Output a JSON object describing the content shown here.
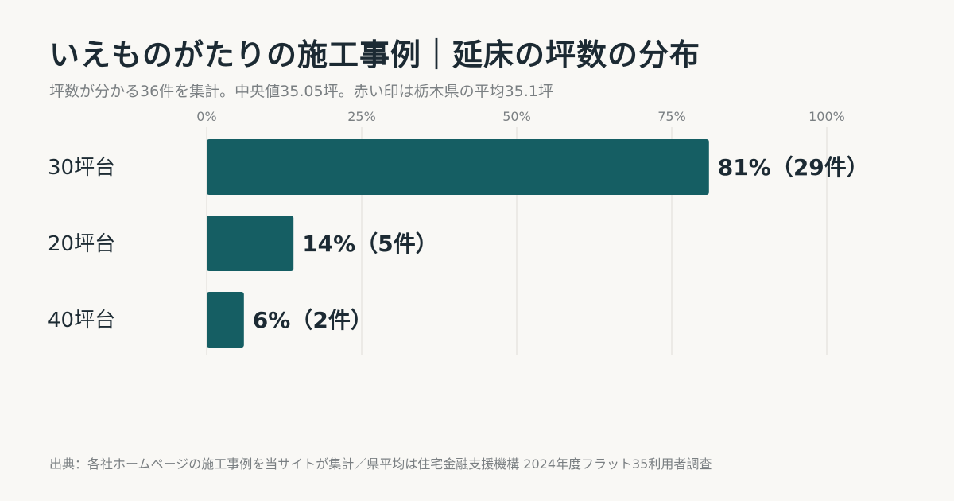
{
  "header": {
    "title": "いえものがたりの施工事例｜延床の坪数の分布",
    "subtitle": "坪数が分かる36件を集計。中央値35.05坪。赤い印は栃木県の平均35.1坪"
  },
  "footer": {
    "source": "出典：各社ホームページの施工事例を当サイトが集計／県平均は住宅金融支援機構 2024年度フラット35利用者調査"
  },
  "colors": {
    "bar": "#155e63",
    "grid": "#dedcd7",
    "background": "#f9f8f5"
  },
  "chart_data": {
    "type": "bar",
    "orientation": "horizontal",
    "categories": [
      "30坪台",
      "20坪台",
      "40坪台"
    ],
    "values": [
      81,
      14,
      6
    ],
    "value_labels": [
      "81%（29件）",
      "14%（5件）",
      "6%（2件）"
    ],
    "xlim": [
      0,
      100
    ],
    "xticks": [
      0,
      25,
      50,
      75,
      100
    ],
    "xtick_labels": [
      "0%",
      "25%",
      "50%",
      "75%",
      "100%"
    ],
    "grid": true,
    "legend": "none"
  }
}
